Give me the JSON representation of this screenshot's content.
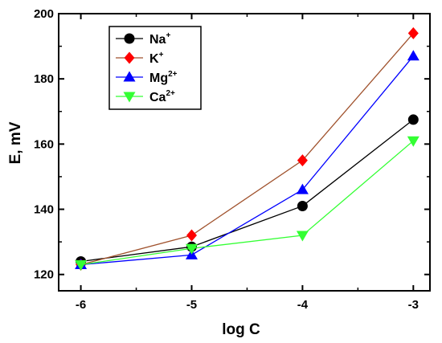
{
  "chart_data": {
    "type": "line",
    "x": [
      -6,
      -5,
      -4,
      -3
    ],
    "xlabel": "log C",
    "ylabel": "E, mV",
    "xlim": [
      -6.2,
      -2.85
    ],
    "ylim": [
      115,
      200
    ],
    "xticks": [
      "-6",
      "-5",
      "-4",
      "-3"
    ],
    "yticks": [
      "120",
      "140",
      "160",
      "180",
      "200"
    ],
    "grid": false,
    "legend_position": "top-left",
    "series": [
      {
        "name": "Na",
        "sup": "+",
        "color": "#000000",
        "marker": "circle",
        "values": [
          124,
          128.5,
          141,
          167.5
        ]
      },
      {
        "name": "K",
        "sup": "+",
        "color": "#ff0000",
        "line_color": "#a0522d",
        "marker": "diamond",
        "values": [
          123,
          132,
          155,
          194
        ]
      },
      {
        "name": "Mg",
        "sup": "2+",
        "color": "#0000ff",
        "marker": "triangle-up",
        "values": [
          123,
          126,
          146,
          187
        ]
      },
      {
        "name": "Ca",
        "sup": "2+",
        "color": "#33ff33",
        "marker": "triangle-down",
        "values": [
          123,
          128,
          132,
          161
        ]
      }
    ]
  }
}
